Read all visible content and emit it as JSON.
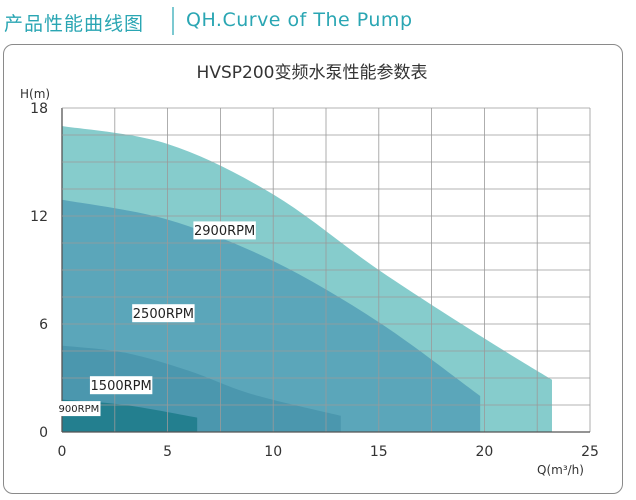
{
  "header": {
    "title_cn": "产品性能曲线图",
    "title_en": "QH.Curve of The Pump",
    "accent": "#2aa6b3"
  },
  "chart_data": {
    "type": "area",
    "title": "HVSP200变频水泵性能参数表",
    "xlabel": "Q(m³/h)",
    "ylabel": "H(m)",
    "xlim": [
      0,
      25
    ],
    "ylim": [
      0,
      18
    ],
    "xticks": [
      0,
      5,
      10,
      15,
      20,
      25
    ],
    "yticks": [
      0,
      6,
      12,
      18
    ],
    "grid": true,
    "series": [
      {
        "name": "2900RPM",
        "color": "#86cccc",
        "x": [
          0,
          5,
          10,
          15,
          20,
          23.2
        ],
        "y": [
          17,
          16,
          13.2,
          9.0,
          5.2,
          2.9
        ]
      },
      {
        "name": "2500RPM",
        "color": "#5ba6ba",
        "x": [
          0,
          5,
          10,
          15,
          19.8
        ],
        "y": [
          12.9,
          11.8,
          9.5,
          6.1,
          2.0
        ]
      },
      {
        "name": "1500RPM",
        "color": "#4b97ae",
        "x": [
          0,
          3,
          6,
          9,
          13.2
        ],
        "y": [
          4.8,
          4.4,
          3.4,
          2.1,
          0.9
        ]
      },
      {
        "name": "900RPM",
        "color": "#237f8f",
        "x": [
          0,
          3,
          6.4
        ],
        "y": [
          1.8,
          1.5,
          0.8
        ]
      }
    ]
  }
}
